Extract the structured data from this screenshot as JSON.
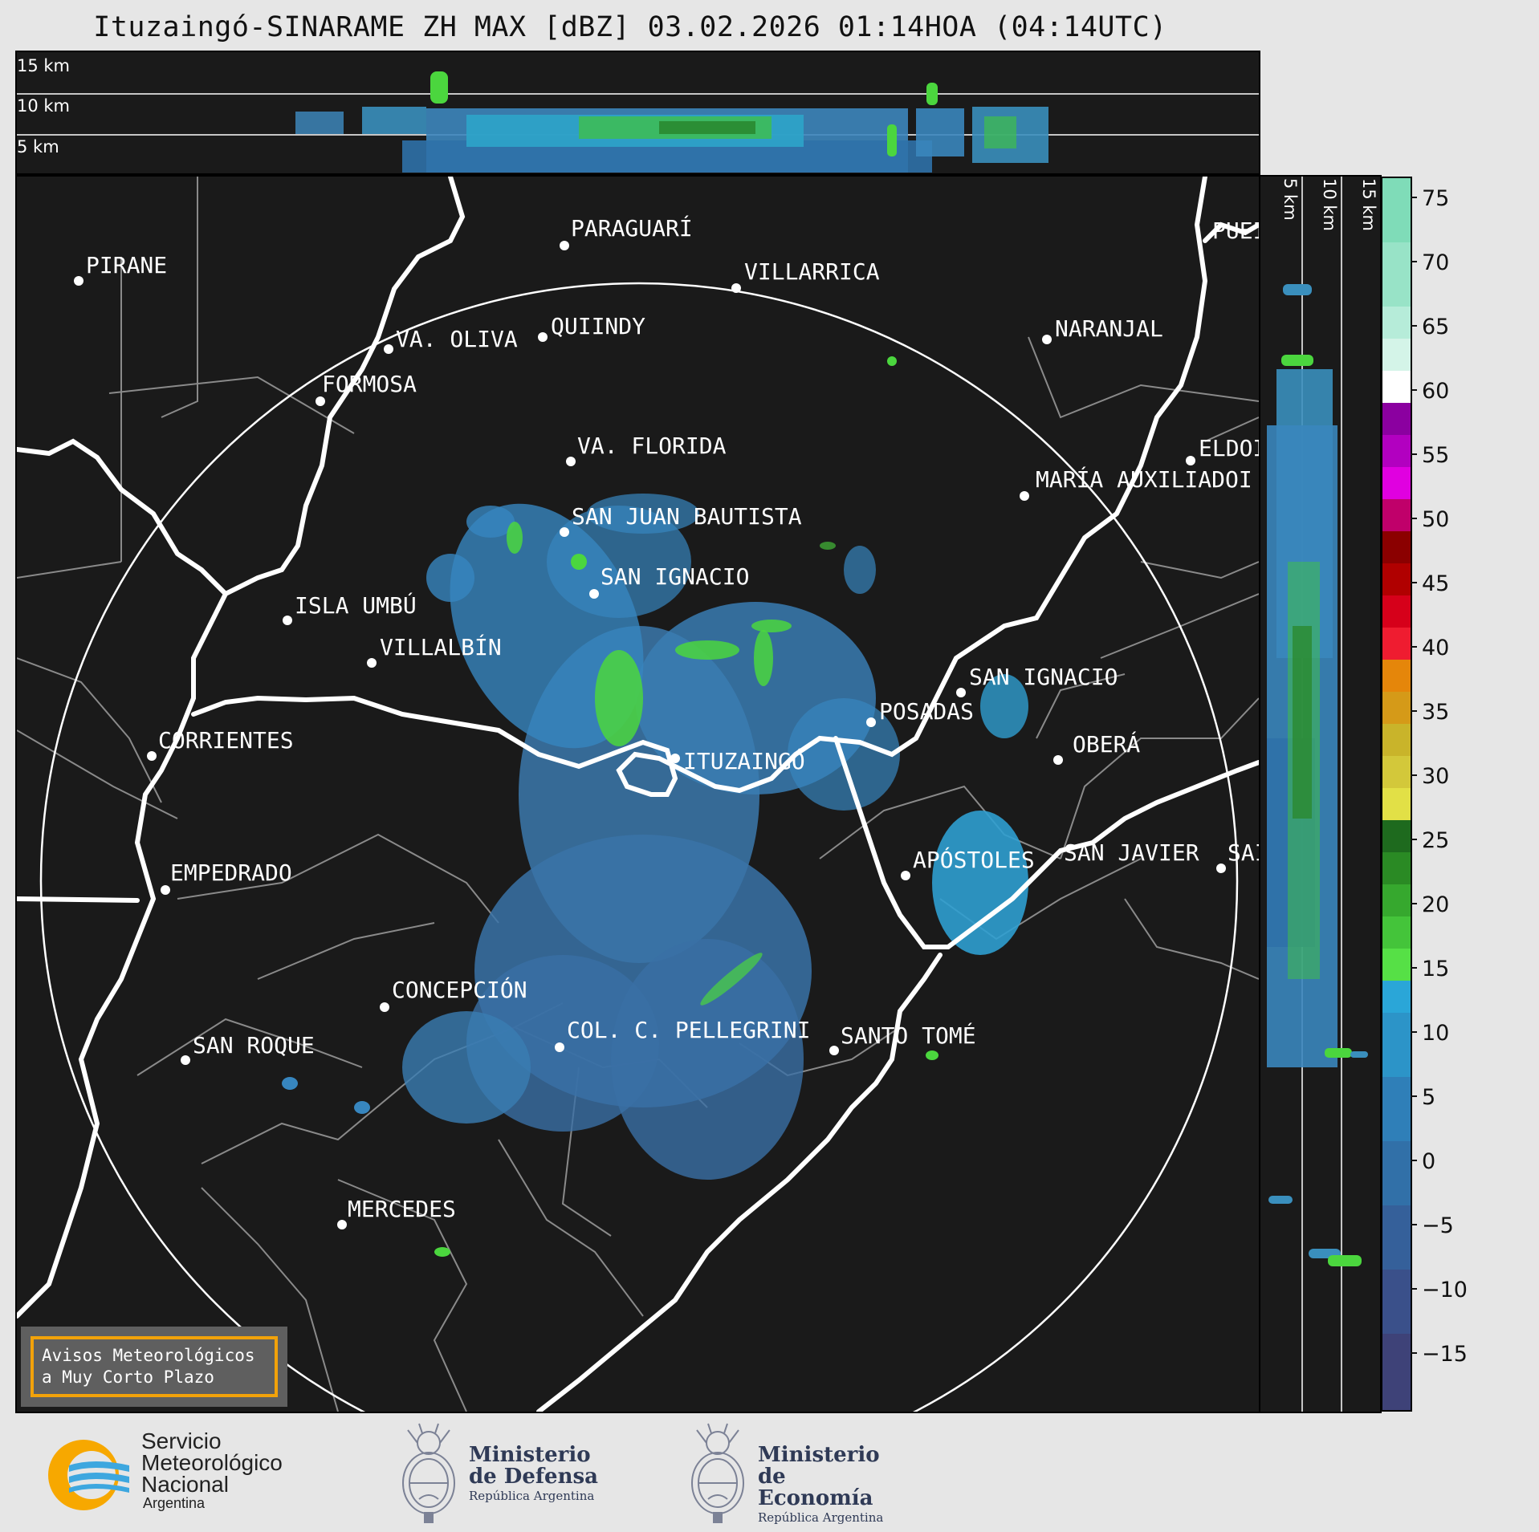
{
  "title": "Ituzaingó-SINARAME ZH MAX [dBZ] 03.02.2026 01:14HOA (04:14UTC)",
  "altitude_labels": [
    "15 km",
    "10 km",
    "5 km"
  ],
  "side_altitude_labels": [
    "5 km",
    "10 km",
    "15 km"
  ],
  "cities": [
    {
      "name": "PIRANE"
    },
    {
      "name": "PARAGUARÍ"
    },
    {
      "name": "VILLARRICA"
    },
    {
      "name": "PUEI"
    },
    {
      "name": "QUIINDY"
    },
    {
      "name": "VA. OLIVA"
    },
    {
      "name": "NARANJAL"
    },
    {
      "name": "FORMOSA"
    },
    {
      "name": "VA. FLORIDA"
    },
    {
      "name": "ELDOI"
    },
    {
      "name": "MARÍA AUXILIADOI"
    },
    {
      "name": "SAN JUAN BAUTISTA"
    },
    {
      "name": "SAN IGNACIO"
    },
    {
      "name": "ISLA UMBÚ"
    },
    {
      "name": "VILLALBÍN"
    },
    {
      "name": "SAN IGNACIO"
    },
    {
      "name": "POSADAS"
    },
    {
      "name": "CORRIENTES"
    },
    {
      "name": "ITUZAINGÓ"
    },
    {
      "name": "OBERÁ"
    },
    {
      "name": "SAN JAVIER"
    },
    {
      "name": "SAI"
    },
    {
      "name": "APÓSTOLES"
    },
    {
      "name": "EMPEDRADO"
    },
    {
      "name": "CONCEPCIÓN"
    },
    {
      "name": "COL. C. PELLEGRINI"
    },
    {
      "name": "SANTO TOMÉ"
    },
    {
      "name": "SAN ROQUE"
    },
    {
      "name": "MERCEDES"
    }
  ],
  "colorbar": {
    "range": [
      -20,
      77
    ],
    "ticks": [
      "75",
      "70",
      "65",
      "60",
      "55",
      "50",
      "45",
      "40",
      "35",
      "30",
      "25",
      "20",
      "15",
      "10",
      "5",
      "0",
      "−5",
      "−10",
      "−15"
    ]
  },
  "notice": {
    "line1": "Avisos Meteorológicos",
    "line2": "a Muy Corto Plazo"
  },
  "logos": {
    "smn": [
      "Servicio",
      "Meteorológico",
      "Nacional",
      "Argentina"
    ],
    "defensa": [
      "Ministerio",
      "de Defensa",
      "República Argentina"
    ],
    "economia": [
      "Ministerio",
      "de Economía",
      "República Argentina"
    ]
  }
}
